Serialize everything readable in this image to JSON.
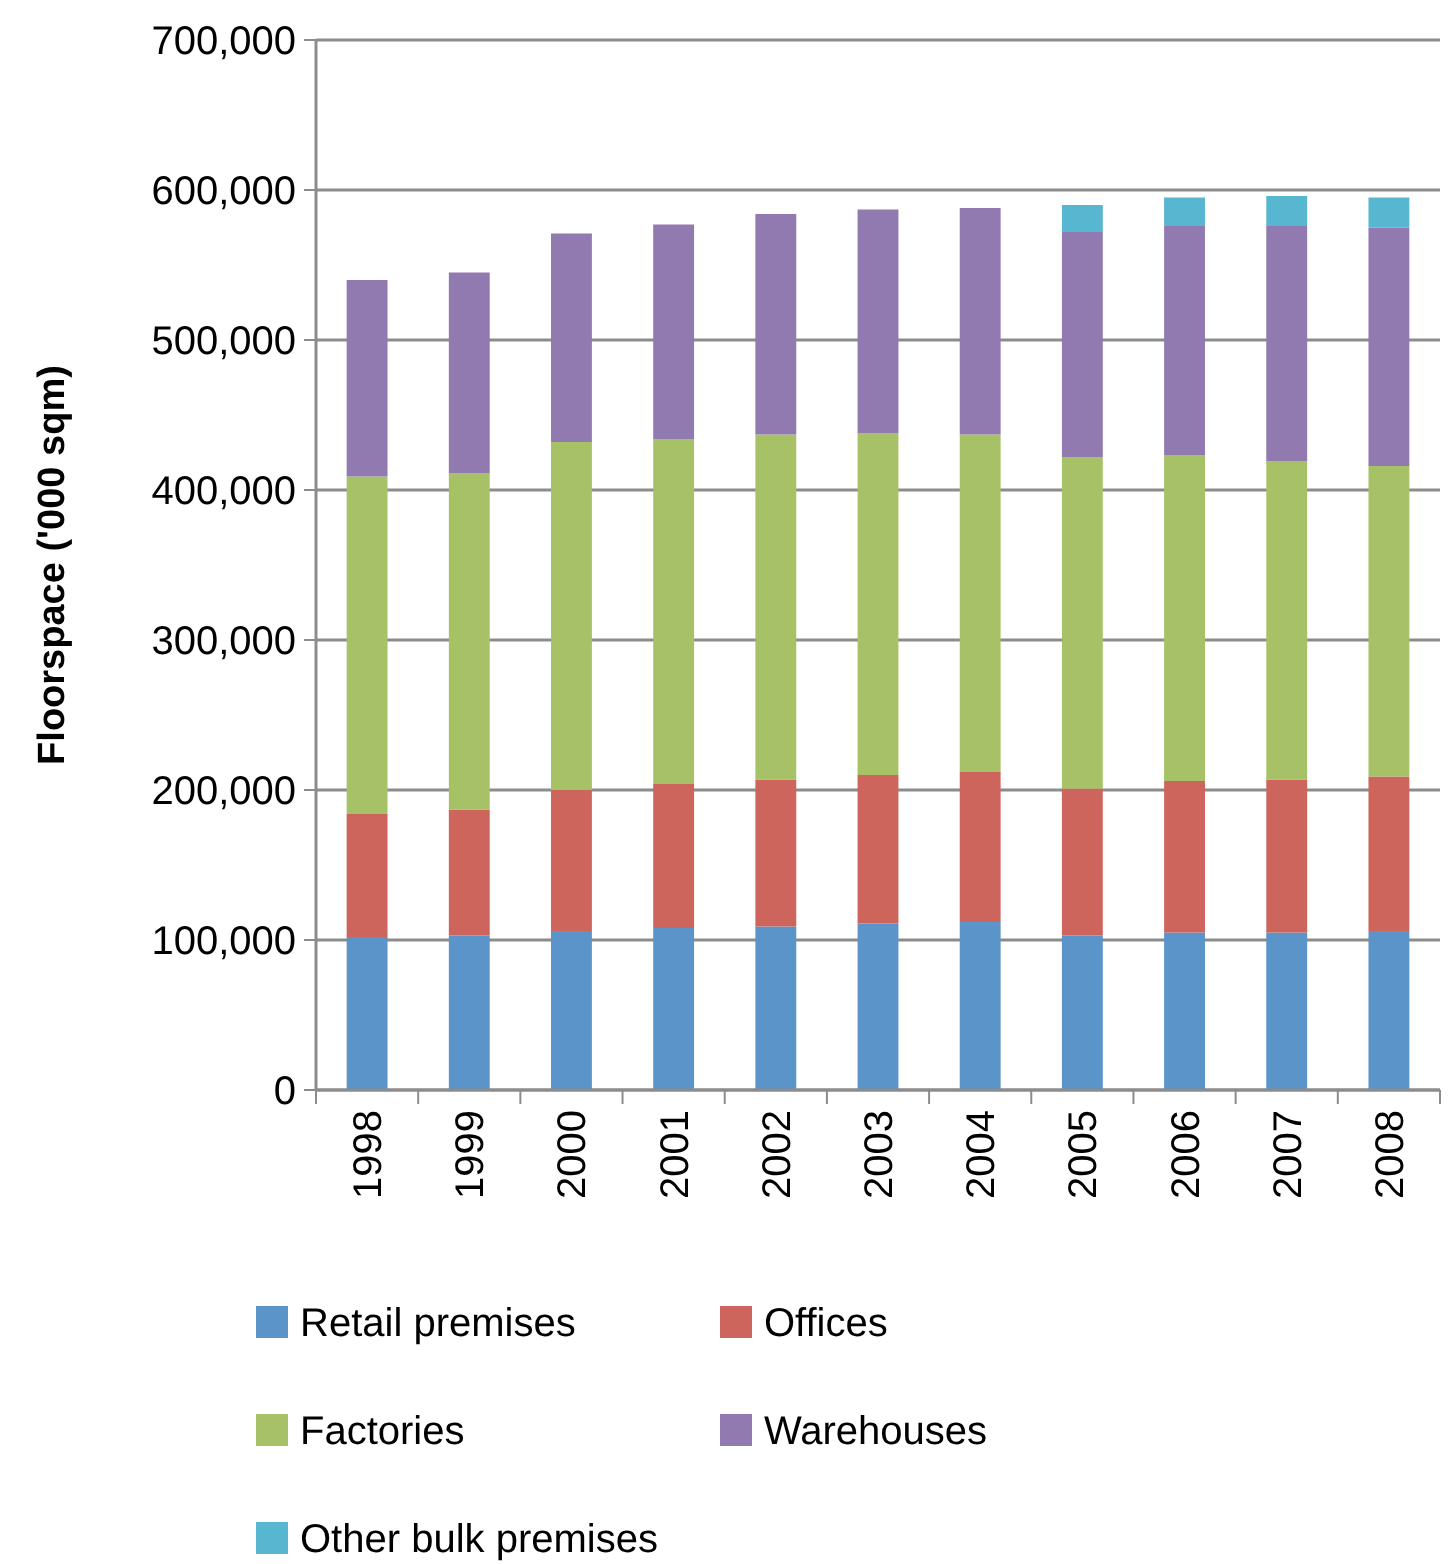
{
  "chart_data": {
    "type": "bar",
    "stacked": true,
    "ylabel": "Floorspace ('000 sqm)",
    "categories": [
      "1998",
      "1999",
      "2000",
      "2001",
      "2002",
      "2003",
      "2004",
      "2005",
      "2006",
      "2007",
      "2008"
    ],
    "series": [
      {
        "name": "Retail premises",
        "color": "#5b94c8",
        "values": [
          102000,
          103000,
          106000,
          108000,
          109000,
          111000,
          112000,
          103000,
          105000,
          105000,
          106000
        ]
      },
      {
        "name": "Offices",
        "color": "#cd655d",
        "values": [
          82000,
          84000,
          94000,
          96000,
          98000,
          99000,
          100000,
          98000,
          101000,
          102000,
          103000
        ]
      },
      {
        "name": "Factories",
        "color": "#a7c266",
        "values": [
          225000,
          224000,
          232000,
          230000,
          230000,
          228000,
          225000,
          221000,
          217000,
          212000,
          207000
        ]
      },
      {
        "name": "Warehouses",
        "color": "#917ab0",
        "values": [
          131000,
          134000,
          139000,
          143000,
          147000,
          149000,
          151000,
          150000,
          153000,
          157000,
          159000
        ]
      },
      {
        "name": "Other bulk premises",
        "color": "#58b7d0",
        "values": [
          null,
          null,
          null,
          null,
          null,
          null,
          null,
          18000,
          19000,
          20000,
          20000
        ]
      }
    ],
    "ylim": [
      0,
      700000
    ],
    "yticks": [
      {
        "value": 0,
        "label": "0"
      },
      {
        "value": 100000,
        "label": "100,000"
      },
      {
        "value": 200000,
        "label": "200,000"
      },
      {
        "value": 300000,
        "label": "300,000"
      },
      {
        "value": 400000,
        "label": "400,000"
      },
      {
        "value": 500000,
        "label": "500,000"
      },
      {
        "value": 600000,
        "label": "600,000"
      },
      {
        "value": 700000,
        "label": "700,000"
      }
    ],
    "grid": "y",
    "legend": "bottom"
  }
}
